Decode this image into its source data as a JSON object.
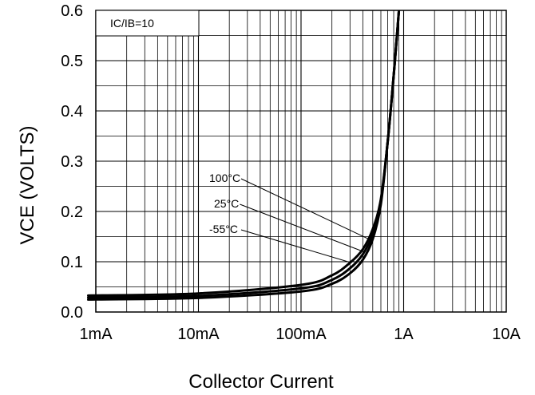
{
  "chart_data": {
    "type": "line",
    "title": "",
    "xlabel": "Collector Current",
    "ylabel": "VCE (VOLTS)",
    "x_scale": "log",
    "xlim": [
      "1mA",
      "10A"
    ],
    "ylim": [
      0,
      0.6
    ],
    "grid": true,
    "legend": "none",
    "x_tick_labels": [
      "1mA",
      "10mA",
      "100mA",
      "1A",
      "10A"
    ],
    "y_tick_labels": [
      "0.0",
      "0.1",
      "0.2",
      "0.3",
      "0.4",
      "0.5",
      "0.6"
    ],
    "condition_label": "IC/IB=10",
    "series": [
      {
        "name": "100°C",
        "x": [
          "1mA",
          "10mA",
          "100mA",
          "200mA",
          "300mA",
          "400mA",
          "500mA",
          "600mA",
          "700mA",
          "800mA",
          "900mA"
        ],
        "y": [
          0.033,
          0.037,
          0.054,
          0.073,
          0.098,
          0.125,
          0.165,
          0.225,
          0.34,
          0.47,
          0.6
        ]
      },
      {
        "name": "25°C",
        "x": [
          "1mA",
          "10mA",
          "100mA",
          "200mA",
          "300mA",
          "400mA",
          "500mA",
          "600mA",
          "700mA",
          "800mA",
          "900mA"
        ],
        "y": [
          0.029,
          0.032,
          0.047,
          0.064,
          0.087,
          0.115,
          0.155,
          0.22,
          0.34,
          0.47,
          0.6
        ]
      },
      {
        "name": "-55°C",
        "x": [
          "1mA",
          "10mA",
          "100mA",
          "200mA",
          "300mA",
          "400mA",
          "500mA",
          "600mA",
          "700mA",
          "800mA",
          "900mA"
        ],
        "y": [
          0.025,
          0.028,
          0.041,
          0.056,
          0.077,
          0.104,
          0.145,
          0.215,
          0.34,
          0.47,
          0.6
        ]
      }
    ]
  }
}
